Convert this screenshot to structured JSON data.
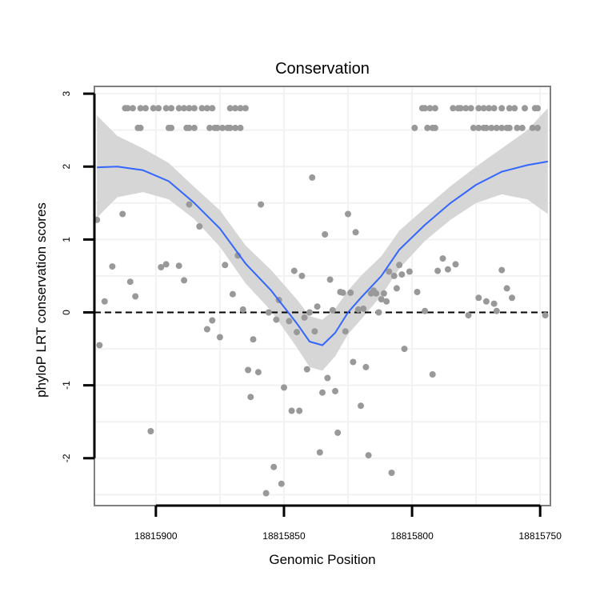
{
  "chart_data": {
    "type": "scatter",
    "title": "Conservation",
    "xlabel": "Genomic Position",
    "ylabel": "phyloP LRT conservation scores",
    "x_reversed": true,
    "xlim": [
      18815924,
      18815746
    ],
    "ylim": [
      -2.65,
      3.1
    ],
    "x_ticks": [
      18815900,
      18815850,
      18815800,
      18815750
    ],
    "x_tick_labels": [
      "18815900",
      "18815850",
      "18815800",
      "18815750"
    ],
    "y_ticks": [
      -2,
      -1,
      0,
      1,
      2,
      3
    ],
    "y_tick_labels": [
      "-2",
      "-1",
      "0",
      "1",
      "2",
      "3"
    ],
    "grid": true,
    "reference_line": {
      "y": 0,
      "style": "dashed"
    },
    "colors": {
      "points": "#999999",
      "smooth_line": "#3366ff",
      "ribbon": "#d6d6d6",
      "panel_border": "#7f7f7f",
      "grid": "#f2f2f2"
    },
    "series": [
      {
        "kind": "points",
        "x": [
          18815912,
          18815911,
          18815909,
          18815906,
          18815904,
          18815901,
          18815899,
          18815896,
          18815894,
          18815891,
          18815889,
          18815887,
          18815885,
          18815882,
          18815880,
          18815878,
          18815871,
          18815869,
          18815867,
          18815865,
          18815907,
          18815906,
          18815895,
          18815894,
          18815888,
          18815887,
          18815885,
          18815879,
          18815877,
          18815876,
          18815874,
          18815872,
          18815871,
          18815869,
          18815867,
          18815796,
          18815795,
          18815793,
          18815791,
          18815784,
          18815782,
          18815781,
          18815779,
          18815777,
          18815774,
          18815772,
          18815770,
          18815768,
          18815765,
          18815762,
          18815760,
          18815756,
          18815752,
          18815751,
          18815799,
          18815794,
          18815792,
          18815791,
          18815776,
          18815774,
          18815772,
          18815771,
          18815769,
          18815767,
          18815765,
          18815763,
          18815762,
          18815759,
          18815757,
          18815753,
          18815751,
          18815923,
          18815922,
          18815920,
          18815917,
          18815913,
          18815910,
          18815908,
          18815902,
          18815898,
          18815896,
          18815891,
          18815889,
          18815887,
          18815883,
          18815880,
          18815878,
          18815875,
          18815873,
          18815870,
          18815868,
          18815866,
          18815864,
          18815863,
          18815862,
          18815860,
          18815859,
          18815857,
          18815856,
          18815854,
          18815853,
          18815852,
          18815851,
          18815850,
          18815848,
          18815847,
          18815846,
          18815845,
          18815844,
          18815843,
          18815842,
          18815841,
          18815840,
          18815839,
          18815838,
          18815837,
          18815836,
          18815835,
          18815834,
          18815833,
          18815832,
          18815831,
          18815830,
          18815829,
          18815828,
          18815827,
          18815826,
          18815825,
          18815824,
          18815823,
          18815822,
          18815821,
          18815820,
          18815819,
          18815818,
          18815817,
          18815816,
          18815815,
          18815814,
          18815813,
          18815812,
          18815811,
          18815810,
          18815809,
          18815808,
          18815807,
          18815806,
          18815805,
          18815804,
          18815803,
          18815801,
          18815798,
          18815795,
          18815792,
          18815790,
          18815788,
          18815786,
          18815783,
          18815778,
          18815774,
          18815771,
          18815768,
          18815767,
          18815765,
          18815763,
          18815761,
          18815748
        ],
        "y": [
          2.8,
          2.8,
          2.8,
          2.8,
          2.8,
          2.8,
          2.8,
          2.8,
          2.8,
          2.8,
          2.8,
          2.8,
          2.8,
          2.8,
          2.8,
          2.8,
          2.8,
          2.8,
          2.8,
          2.8,
          2.53,
          2.53,
          2.53,
          2.53,
          2.53,
          2.53,
          2.53,
          2.53,
          2.53,
          2.53,
          2.53,
          2.53,
          2.53,
          2.53,
          2.53,
          2.8,
          2.8,
          2.8,
          2.8,
          2.8,
          2.8,
          2.8,
          2.8,
          2.8,
          2.8,
          2.8,
          2.8,
          2.8,
          2.8,
          2.8,
          2.8,
          2.8,
          2.8,
          2.8,
          2.53,
          2.53,
          2.53,
          2.53,
          2.53,
          2.53,
          2.53,
          2.53,
          2.53,
          2.53,
          2.53,
          2.53,
          2.53,
          2.53,
          2.53,
          2.53,
          2.53,
          1.27,
          -0.45,
          0.15,
          0.63,
          1.35,
          0.42,
          0.22,
          -1.63,
          0.62,
          0.66,
          0.64,
          0.44,
          1.48,
          1.18,
          -0.23,
          -0.11,
          -0.34,
          0.65,
          0.25,
          0.78,
          0.04,
          -0.79,
          -1.16,
          -0.37,
          -0.82,
          1.48,
          -2.48,
          0.0,
          -2.12,
          -0.1,
          0.17,
          -2.35,
          -1.03,
          -0.12,
          -1.35,
          0.57,
          -0.27,
          -1.35,
          0.5,
          -0.07,
          -0.78,
          0.0,
          1.85,
          -0.26,
          0.08,
          -1.92,
          -1.1,
          1.07,
          -0.9,
          0.45,
          0.03,
          -1.08,
          -1.65,
          0.28,
          0.27,
          -0.26,
          1.35,
          0.27,
          -0.68,
          1.1,
          0.04,
          -1.28,
          0.05,
          -0.75,
          -1.96,
          0.26,
          0.3,
          0.26,
          0.0,
          0.18,
          0.26,
          0.15,
          0.56,
          -2.2,
          0.5,
          0.33,
          0.65,
          0.52,
          -0.5,
          0.56,
          0.28,
          0.02,
          -0.85,
          0.57,
          0.74,
          0.59,
          0.66,
          -0.04,
          0.2,
          0.15,
          0.12,
          0.02,
          0.58,
          0.33,
          0.2,
          -0.04
        ]
      },
      {
        "kind": "smooth",
        "name": "",
        "x": [
          18815923,
          18815915,
          18815905,
          18815895,
          18815885,
          18815875,
          18815865,
          18815855,
          18815845,
          18815840,
          18815835,
          18815830,
          18815825,
          18815820,
          18815812,
          18815805,
          18815795,
          18815785,
          18815775,
          18815765,
          18815755,
          18815747
        ],
        "y": [
          1.99,
          2.0,
          1.95,
          1.8,
          1.5,
          1.15,
          0.67,
          0.3,
          -0.15,
          -0.4,
          -0.45,
          -0.28,
          0.0,
          0.2,
          0.5,
          0.86,
          1.2,
          1.5,
          1.75,
          1.93,
          2.02,
          2.07
        ],
        "lower": [
          1.3,
          1.58,
          1.65,
          1.55,
          1.28,
          0.9,
          0.4,
          0.02,
          -0.48,
          -0.75,
          -0.8,
          -0.6,
          -0.3,
          -0.1,
          0.23,
          0.6,
          0.98,
          1.27,
          1.5,
          1.62,
          1.55,
          1.35
        ],
        "upper": [
          2.7,
          2.42,
          2.25,
          2.05,
          1.72,
          1.4,
          0.92,
          0.58,
          0.18,
          -0.05,
          -0.1,
          0.05,
          0.3,
          0.5,
          0.77,
          1.12,
          1.43,
          1.73,
          2.0,
          2.25,
          2.5,
          2.8
        ]
      }
    ]
  }
}
